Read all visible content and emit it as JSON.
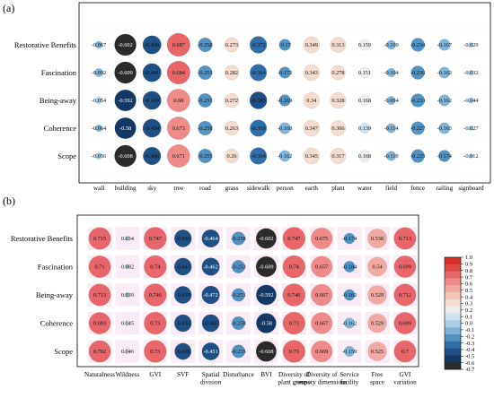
{
  "chart_data": [
    {
      "type": "heatmap",
      "panel_label": "(a)",
      "rows": [
        "Restorative Benefits",
        "Fascination",
        "Being-away",
        "Coherence",
        "Scope"
      ],
      "columns": [
        "wall",
        "building",
        "sky",
        "tree",
        "road",
        "grass",
        "sidewalk",
        "person",
        "earth",
        "plant",
        "water",
        "field",
        "fence",
        "railing",
        "signboard"
      ],
      "values": [
        [
          -0.067,
          -0.602,
          -0.436,
          0.687,
          -0.258,
          0.273,
          -0.372,
          -0.17,
          0.349,
          0.313,
          0.159,
          -0.109,
          -0.234,
          -0.167,
          -0.029
        ],
        [
          -0.092,
          -0.609,
          -0.441,
          0.684,
          -0.253,
          0.282,
          -0.364,
          -0.172,
          0.343,
          0.278,
          0.151,
          -0.104,
          -0.236,
          -0.162,
          -0.032
        ],
        [
          -0.054,
          -0.592,
          -0.439,
          0.68,
          -0.251,
          0.272,
          -0.383,
          -0.169,
          0.34,
          0.328,
          0.168,
          -0.094,
          -0.233,
          -0.162,
          -0.044
        ],
        [
          -0.064,
          -0.58,
          -0.434,
          0.673,
          -0.258,
          0.263,
          -0.358,
          -0.168,
          0.347,
          0.306,
          0.139,
          -0.114,
          -0.227,
          -0.163,
          -0.027
        ],
        [
          -0.056,
          -0.608,
          -0.406,
          0.671,
          -0.255,
          0.26,
          -0.364,
          -0.162,
          0.345,
          0.317,
          0.168,
          -0.119,
          -0.225,
          -0.174,
          -0.012
        ]
      ],
      "labels": [
        [
          "-0.067",
          "-0.602",
          "-0.436",
          "0.687",
          "-0.258",
          "0.273",
          "-0.372",
          "-0.17",
          "0.349",
          "0.313",
          "0.159",
          "-0.109",
          "-0.234",
          "-0.167",
          "-0.029"
        ],
        [
          "-0.092",
          "-0.609",
          "-0.441",
          "0.684",
          "-0.253",
          "0.282",
          "-0.364",
          "-0.172",
          "0.343",
          "0.278",
          "0.151",
          "-0.104",
          "-0.236",
          "-0.162",
          "-0.032"
        ],
        [
          "-0.054",
          "-0.592",
          "-0.439",
          "0.68",
          "-0.251",
          "0.272",
          "-0.383",
          "-0.169",
          "0.34",
          "0.328",
          "0.168",
          "-0.094",
          "-0.233",
          "-0.162",
          "-0.044"
        ],
        [
          "-0.064",
          "-0.58",
          "-0.434",
          "0.673",
          "-0.258",
          "0.263",
          "-0.358",
          "-0.168",
          "0.347",
          "0.306",
          "0.139",
          "-0.114",
          "-0.227",
          "-0.163",
          "-0.027"
        ],
        [
          "-0.056",
          "-0.608",
          "-0.406",
          "0.671",
          "-0.255",
          "0.26",
          "-0.364",
          "-0.162",
          "0.345",
          "0.317",
          "0.168",
          "-0.119",
          "-0.225",
          "-0.174",
          "-0.012"
        ]
      ]
    },
    {
      "type": "heatmap",
      "panel_label": "(b)",
      "rows": [
        "Restorative Benefits",
        "Fascination",
        "Being-away",
        "Coherence",
        "Scope"
      ],
      "columns": [
        "Naturalness",
        "Wildness",
        "GVI",
        "SVF",
        "Spatial division",
        "Disturbance",
        "BVI",
        "Diversity of plant groups",
        "Diversity of sensory dimensions",
        "Service facility",
        "Free space",
        "GVI variation"
      ],
      "values": [
        [
          0.715,
          0.034,
          0.747,
          -0.436,
          -0.464,
          -0.258,
          -0.602,
          0.747,
          0.675,
          -0.174,
          0.538,
          0.713
        ],
        [
          0.71,
          0.002,
          0.74,
          -0.441,
          -0.462,
          -0.253,
          -0.609,
          0.74,
          0.657,
          -0.184,
          0.54,
          0.699
        ],
        [
          0.713,
          0.039,
          0.746,
          -0.439,
          -0.472,
          -0.251,
          -0.592,
          0.746,
          0.667,
          -0.182,
          0.529,
          0.712
        ],
        [
          0.693,
          0.045,
          0.73,
          -0.434,
          -0.446,
          -0.258,
          -0.58,
          0.73,
          0.667,
          -0.162,
          0.529,
          0.699
        ],
        [
          0.702,
          0.046,
          0.73,
          -0.406,
          -0.451,
          -0.255,
          -0.608,
          0.73,
          0.669,
          -0.159,
          0.525,
          0.7
        ]
      ],
      "labels": [
        [
          "0.715",
          "0.034",
          "0.747",
          "-0.436",
          "-0.464",
          "-0.258",
          "-0.602",
          "0.747",
          "0.675",
          "-0.174",
          "0.538",
          "0.713"
        ],
        [
          "0.71",
          "0.002",
          "0.74",
          "-0.441",
          "-0.462",
          "-0.253",
          "-0.609",
          "0.74",
          "0.657",
          "-0.184",
          "0.54",
          "0.699"
        ],
        [
          "0.713",
          "0.039",
          "0.746",
          "-0.439",
          "-0.472",
          "-0.251",
          "-0.592",
          "0.746",
          "0.667",
          "-0.182",
          "0.529",
          "0.712"
        ],
        [
          "0.693",
          "0.045",
          "0.73",
          "-0.434",
          "-0.446",
          "-0.258",
          "-0.58",
          "0.73",
          "0.667",
          "-0.162",
          "0.529",
          "0.699"
        ],
        [
          "0.702",
          "0.046",
          "0.73",
          "-0.406",
          "-0.451",
          "-0.255",
          "-0.608",
          "0.73",
          "0.669",
          "-0.159",
          "0.525",
          "0.7"
        ]
      ]
    }
  ],
  "colorbar": {
    "ticks": [
      1.0,
      0.9,
      0.8,
      0.7,
      0.6,
      0.5,
      0.4,
      0.3,
      0.2,
      0.1,
      0.0,
      -0.1,
      -0.2,
      -0.3,
      -0.4,
      -0.5,
      -0.6,
      -0.7
    ],
    "tick_labels": [
      "1.0",
      "0.9",
      "0.8",
      "0.7",
      "0.6",
      "0.5",
      "0.4",
      "0.3",
      "0.2",
      "0.1",
      "0.0",
      "-0.1",
      "-0.2",
      "-0.3",
      "-0.4",
      "-0.5",
      "-0.6",
      "-0.7"
    ],
    "colors": [
      "#d73027",
      "#e04a45",
      "#e8666a",
      "#ee8b88",
      "#f2a9a3",
      "#f4c4b6",
      "#f3dcd0",
      "#eeeeee",
      "#cfe3ef",
      "#a9cfe6",
      "#7fb5da",
      "#5393c4",
      "#2f6ea8",
      "#1e4f85",
      "#143865",
      "#2b2b2b"
    ]
  }
}
